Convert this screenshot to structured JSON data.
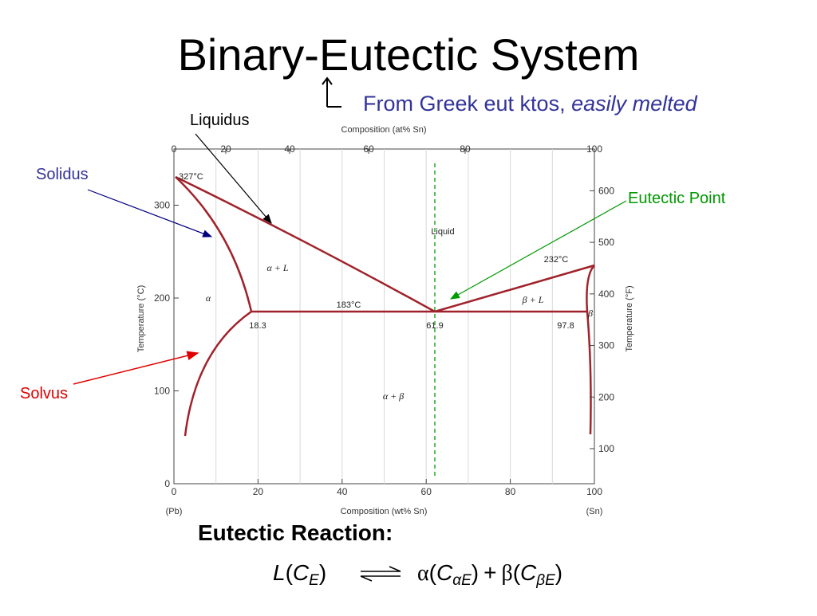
{
  "title": "Binary-Eutectic System",
  "subtitle": {
    "plain": "From Greek eut ktos, ",
    "italic": "easily melted"
  },
  "annotations": {
    "liquidus": "Liquidus",
    "solidus": "Solidus",
    "eutectic_point": "Eutectic Point",
    "solvus": "Solvus"
  },
  "diagram": {
    "top_axis_label": "Composition (at% Sn)",
    "top_ticks": [
      0,
      20,
      40,
      60,
      80,
      100
    ],
    "bottom_axis_label": "Composition (wt% Sn)",
    "bottom_ticks": [
      0,
      20,
      40,
      60,
      80,
      100
    ],
    "left_end": "(Pb)",
    "right_end": "(Sn)",
    "left_axis_label": "Temperature (°C)",
    "left_ticks": [
      0,
      100,
      200,
      300
    ],
    "right_axis_label": "Temperature (°F)",
    "right_ticks": [
      100,
      200,
      300,
      400,
      500,
      600
    ],
    "labels": {
      "pb_melt": "327°C",
      "liquid": "Liquid",
      "sn_melt": "232°C",
      "alpha_l": "α + L",
      "eutectic_temp": "183°C",
      "beta_l": "β + L",
      "alpha": "α",
      "beta": "β",
      "c_alpha": "18.3",
      "c_e": "61.9",
      "c_beta": "97.8",
      "alpha_beta": "α + β"
    }
  },
  "reaction": {
    "heading": "Eutectic Reaction:",
    "parts": [
      "L",
      "(",
      "C",
      "E",
      ")",
      "α",
      "(",
      "C",
      "αE",
      ")",
      "+",
      "β",
      "(",
      "C",
      "βE",
      ")"
    ]
  }
}
